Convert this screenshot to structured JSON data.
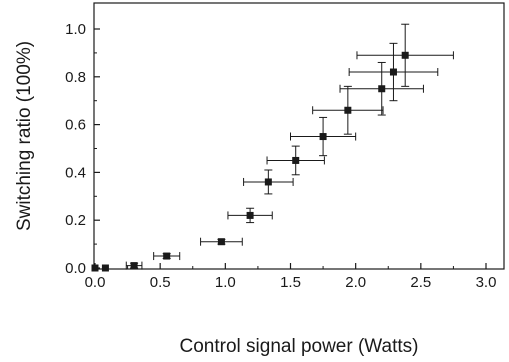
{
  "chart_data": {
    "type": "scatter",
    "title": "",
    "xlabel": "Control signal power (Watts)",
    "ylabel": "Switching ratio (100%)",
    "xlim": [
      0.0,
      3.2
    ],
    "ylim": [
      0.0,
      1.1
    ],
    "x_ticks": [
      "0.0",
      "0.5",
      "1.0",
      "1.5",
      "2.0",
      "2.5",
      "3.0"
    ],
    "y_ticks": [
      "0.0",
      "0.2",
      "0.4",
      "0.6",
      "0.8",
      "1.0"
    ],
    "grid": false,
    "marker": "square",
    "color": "#1a1a1a",
    "points": [
      {
        "x": 0.0,
        "y": 0.0,
        "xerr": 0.0,
        "yerr": 0.0
      },
      {
        "x": 0.08,
        "y": 0.0,
        "xerr": 0.0,
        "yerr": 0.0
      },
      {
        "x": 0.3,
        "y": 0.01,
        "xerr": 0.06,
        "yerr": 0.01
      },
      {
        "x": 0.55,
        "y": 0.05,
        "xerr": 0.1,
        "yerr": 0.01
      },
      {
        "x": 0.97,
        "y": 0.11,
        "xerr": 0.16,
        "yerr": 0.01
      },
      {
        "x": 1.19,
        "y": 0.22,
        "xerr": 0.17,
        "yerr": 0.03
      },
      {
        "x": 1.33,
        "y": 0.36,
        "xerr": 0.19,
        "yerr": 0.05
      },
      {
        "x": 1.54,
        "y": 0.45,
        "xerr": 0.22,
        "yerr": 0.06
      },
      {
        "x": 1.75,
        "y": 0.55,
        "xerr": 0.25,
        "yerr": 0.08
      },
      {
        "x": 1.94,
        "y": 0.66,
        "xerr": 0.27,
        "yerr": 0.1
      },
      {
        "x": 2.2,
        "y": 0.75,
        "xerr": 0.32,
        "yerr": 0.11
      },
      {
        "x": 2.29,
        "y": 0.82,
        "xerr": 0.34,
        "yerr": 0.12
      },
      {
        "x": 2.38,
        "y": 0.89,
        "xerr": 0.37,
        "yerr": 0.13
      }
    ]
  }
}
